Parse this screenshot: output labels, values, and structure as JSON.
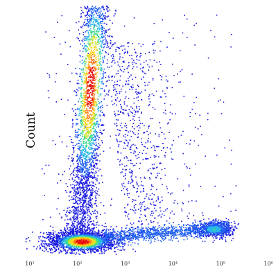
{
  "chart_data": {
    "type": "heatmap",
    "subtype": "flow cytometry density plot",
    "title": "",
    "xlabel": "",
    "ylabel": "Count",
    "x_scale": "log",
    "xlim": [
      10,
      1000000
    ],
    "x_ticks": [
      "10¹",
      "10²",
      "10³",
      "10⁴",
      "10⁵",
      "10⁶"
    ],
    "x_tick_values": [
      10,
      100,
      1000,
      10000,
      100000,
      1000000
    ],
    "color_scale": [
      "#1a1adf",
      "#1e5ff0",
      "#27b8e8",
      "#39d98a",
      "#c9e12a",
      "#ffd31a",
      "#ff7a10",
      "#e8120c"
    ],
    "populations": [
      {
        "x_center": 200,
        "y_level": "high (vertical streak)",
        "density": "medium-high"
      },
      {
        "x_center": 150,
        "y_level": "bottom",
        "density": "highest"
      },
      {
        "x_center": 60000,
        "y_level": "bottom",
        "density": "low-medium"
      }
    ]
  }
}
